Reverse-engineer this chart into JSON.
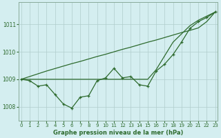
{
  "xlabel": "Graphe pression niveau de la mer (hPa)",
  "x": [
    0,
    1,
    2,
    3,
    4,
    5,
    6,
    7,
    8,
    9,
    10,
    11,
    12,
    13,
    14,
    15,
    16,
    17,
    18,
    19,
    20,
    21,
    22,
    23
  ],
  "line1": [
    1009.0,
    1008.95,
    1008.75,
    1008.8,
    1008.45,
    1008.1,
    1007.95,
    1008.35,
    1008.4,
    1008.95,
    1009.05,
    1009.4,
    1009.05,
    1009.1,
    1008.8,
    1008.75,
    1009.3,
    1009.55,
    1009.9,
    1010.35,
    1010.85,
    1011.1,
    1011.25,
    1011.45
  ],
  "line2": [
    1009.0,
    1009.1,
    1009.2,
    1009.3,
    1009.39,
    1009.48,
    1009.57,
    1009.65,
    1009.74,
    1009.83,
    1009.91,
    1010.0,
    1010.09,
    1010.17,
    1010.26,
    1010.35,
    1010.43,
    1010.52,
    1010.61,
    1010.7,
    1010.78,
    1010.87,
    1011.1,
    1011.45
  ],
  "line3": [
    1009.0,
    1009.0,
    1009.0,
    1009.0,
    1009.0,
    1009.0,
    1009.0,
    1009.0,
    1009.0,
    1009.0,
    1009.0,
    1009.0,
    1009.0,
    1009.0,
    1009.0,
    1009.0,
    1009.35,
    1009.85,
    1010.35,
    1010.65,
    1010.95,
    1011.15,
    1011.3,
    1011.45
  ],
  "line_color": "#2d6a2d",
  "bg_color": "#d4eef0",
  "grid_color": "#b0cccc",
  "ylim_min": 1007.5,
  "ylim_max": 1011.8,
  "ytick_labels": [
    "1008",
    "1009",
    "1010",
    "1011"
  ],
  "ytick_vals": [
    1008,
    1009,
    1010,
    1011
  ],
  "xticks": [
    0,
    1,
    2,
    3,
    4,
    5,
    6,
    7,
    8,
    9,
    10,
    11,
    12,
    13,
    14,
    15,
    16,
    17,
    18,
    19,
    20,
    21,
    22,
    23
  ],
  "xlabel_fontsize": 6.0,
  "tick_fontsize": 5.0,
  "marker": "+",
  "markersize": 3.5,
  "linewidth": 0.9
}
